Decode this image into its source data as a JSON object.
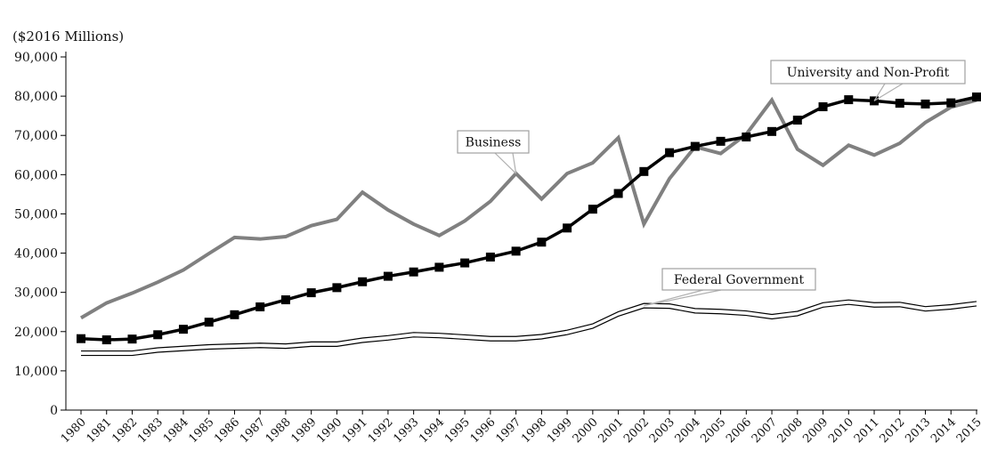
{
  "chart_data": {
    "type": "line",
    "ylabel": "($2016 Millions)",
    "ylim": [
      0,
      90000
    ],
    "yticks": [
      "0",
      "10,000",
      "20,000",
      "30,000",
      "40,000",
      "50,000",
      "60,000",
      "70,000",
      "80,000",
      "90,000"
    ],
    "ytick_values": [
      0,
      10000,
      20000,
      30000,
      40000,
      50000,
      60000,
      70000,
      80000,
      90000
    ],
    "grid": false,
    "categories": [
      "1980",
      "1981",
      "1982",
      "1983",
      "1984",
      "1985",
      "1986",
      "1987",
      "1988",
      "1989",
      "1990",
      "1991",
      "1992",
      "1993",
      "1994",
      "1995",
      "1996",
      "1997",
      "1998",
      "1999",
      "2000",
      "2001",
      "2002",
      "2003",
      "2004",
      "2005",
      "2006",
      "2007",
      "2008",
      "2009",
      "2010",
      "2011",
      "2012",
      "2013",
      "2014",
      "2015"
    ],
    "series": [
      {
        "name": "Business",
        "style": "thick-gray",
        "color": "#808080",
        "values": [
          23500,
          27300,
          29800,
          32600,
          35700,
          39900,
          44000,
          43600,
          44200,
          47000,
          48600,
          55500,
          51000,
          47400,
          44500,
          48200,
          53200,
          60300,
          53800,
          60300,
          63000,
          69400,
          47400,
          59000,
          67100,
          65400,
          70300,
          79000,
          66500,
          62400,
          67500,
          65000,
          68000,
          73300,
          77200,
          79000
        ]
      },
      {
        "name": "University and Non-Profit",
        "style": "black-square-markers",
        "color": "#000000",
        "values": [
          18200,
          17900,
          18100,
          19200,
          20600,
          22400,
          24300,
          26300,
          28100,
          29900,
          31200,
          32700,
          34100,
          35200,
          36400,
          37500,
          39000,
          40500,
          42800,
          46400,
          51200,
          55200,
          60800,
          65600,
          67200,
          68500,
          69600,
          71000,
          73900,
          77300,
          79100,
          78800,
          78200,
          78000,
          78300,
          79800
        ]
      },
      {
        "name": "Federal Government",
        "style": "double-line",
        "color": "#000000",
        "values": [
          14500,
          14500,
          14500,
          15300,
          15700,
          16100,
          16300,
          16500,
          16300,
          16800,
          16800,
          17800,
          18400,
          19200,
          19000,
          18600,
          18200,
          18200,
          18700,
          19800,
          21400,
          24500,
          26600,
          26500,
          25300,
          25100,
          24700,
          23800,
          24600,
          26800,
          27500,
          26800,
          26900,
          25800,
          26300,
          27100
        ]
      }
    ],
    "annotations": [
      {
        "text": "University and Non-Profit",
        "series": "University and Non-Profit",
        "year": "2011"
      },
      {
        "text": "Business",
        "series": "Business",
        "year": "1997"
      },
      {
        "text": "Federal Government",
        "series": "Federal Government",
        "year": "2002"
      }
    ]
  }
}
